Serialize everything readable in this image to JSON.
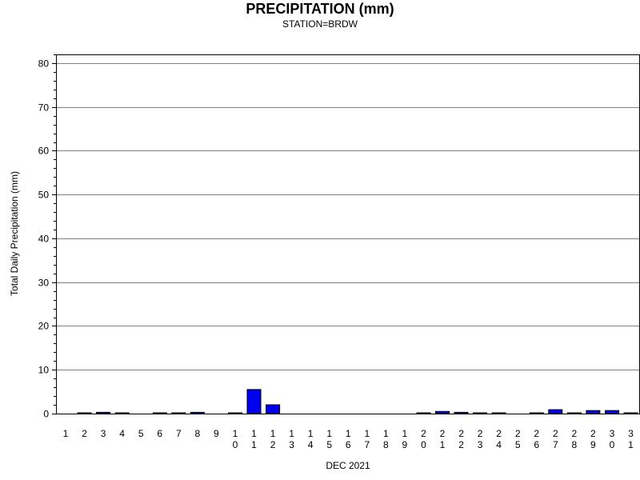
{
  "chart_data": {
    "type": "bar",
    "title": "PRECIPITATION (mm)",
    "subtitle": "STATION=BRDW",
    "xlabel": "DEC 2021",
    "ylabel": "Total Daily Precipitation (mm)",
    "ylim": [
      0,
      82
    ],
    "yticks": [
      0,
      10,
      20,
      30,
      40,
      50,
      60,
      70,
      80
    ],
    "grid": true,
    "bar_color": "#0000ee",
    "categories": [
      "1",
      "2",
      "3",
      "4",
      "5",
      "6",
      "7",
      "8",
      "9",
      "10",
      "11",
      "12",
      "13",
      "14",
      "15",
      "16",
      "17",
      "18",
      "19",
      "20",
      "21",
      "22",
      "23",
      "24",
      "25",
      "26",
      "27",
      "28",
      "29",
      "30",
      "31"
    ],
    "values": [
      0,
      0.1,
      0.3,
      0.1,
      0,
      0.1,
      0.1,
      0.3,
      0,
      0.1,
      5.5,
      2.0,
      0,
      0,
      0,
      0,
      0,
      0,
      0,
      0.1,
      0.5,
      0.3,
      0.1,
      0.1,
      0,
      0.1,
      0.9,
      0.1,
      0.7,
      0.7,
      0.1
    ]
  }
}
